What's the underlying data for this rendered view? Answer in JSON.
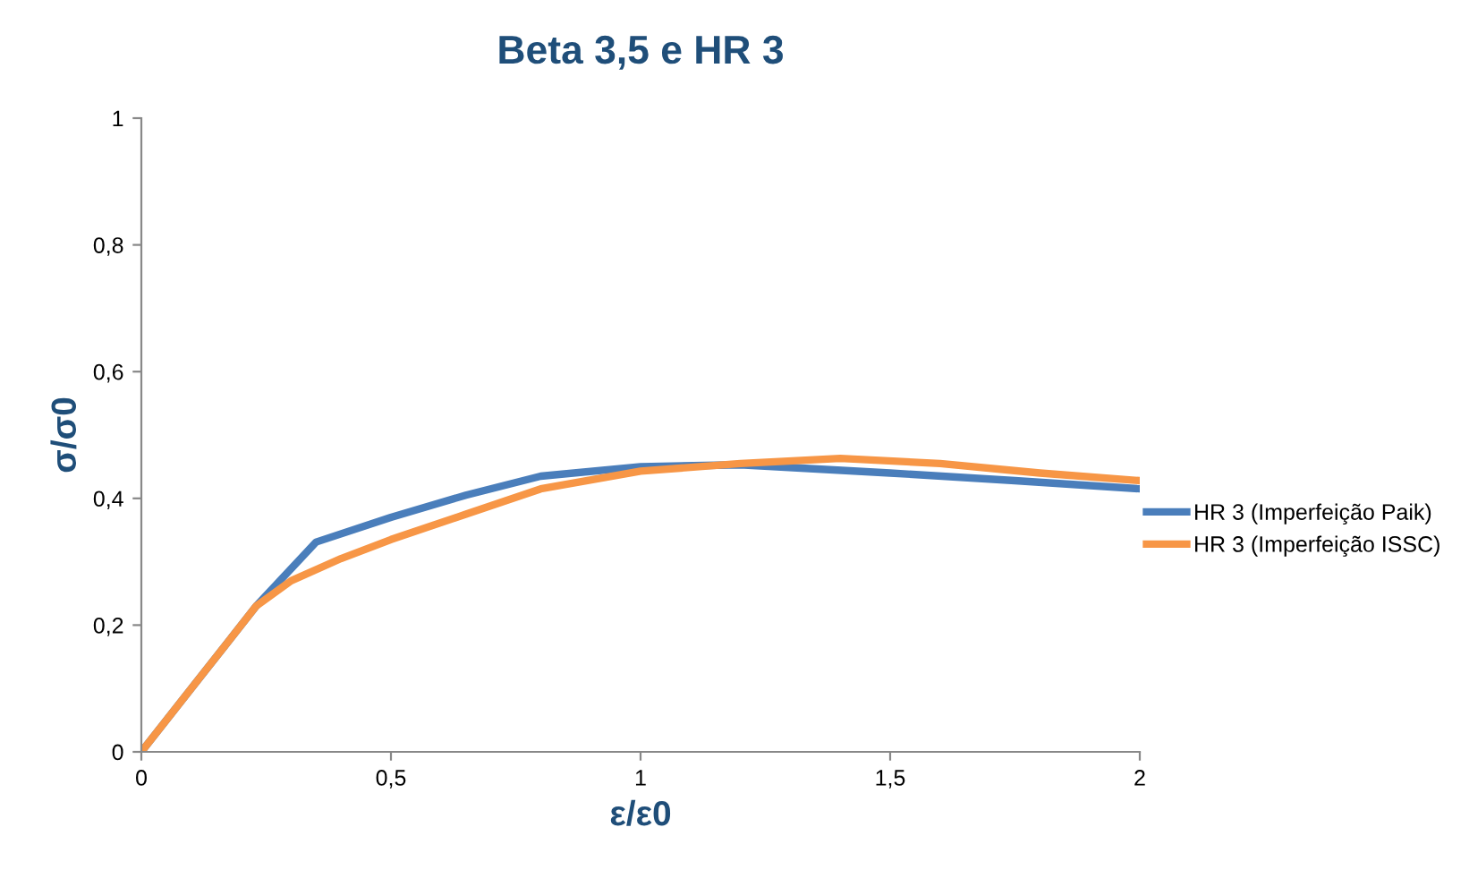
{
  "chart_data": {
    "type": "line",
    "title": "Beta 3,5 e HR 3",
    "xlabel": "ε/ε0",
    "ylabel": "σ/σ0",
    "xlim": [
      0,
      2
    ],
    "xticks": [
      0,
      {
        "value": 0.5,
        "label": "0,5"
      },
      1,
      {
        "value": 1.5,
        "label": "1,5"
      },
      2
    ],
    "ylim": [
      0,
      1
    ],
    "yticks": [
      0,
      {
        "value": 0.2,
        "label": "0,2"
      },
      {
        "value": 0.4,
        "label": "0,4"
      },
      {
        "value": 0.6,
        "label": "0,6"
      },
      {
        "value": 0.8,
        "label": "0,8"
      },
      1
    ],
    "grid": false,
    "legend": "right",
    "marker": "none",
    "line_style": "solid",
    "series": [
      {
        "name": "HR 3 (Imperfeição Paik)",
        "color": "#4a7ebb",
        "x": [
          0,
          0.23,
          0.35,
          0.5,
          0.65,
          0.8,
          1.0,
          1.2,
          1.5,
          1.75,
          2
        ],
        "values": [
          0,
          0.23,
          0.331,
          0.37,
          0.405,
          0.435,
          0.45,
          0.453,
          0.44,
          0.428,
          0.415
        ]
      },
      {
        "name": "HR 3 (Imperfeição ISSC)",
        "color": "#f79646",
        "x": [
          0,
          0.12,
          0.23,
          0.3,
          0.4,
          0.5,
          0.65,
          0.8,
          1.0,
          1.2,
          1.4,
          1.6,
          1.8,
          2
        ],
        "values": [
          0,
          0.12,
          0.23,
          0.27,
          0.305,
          0.335,
          0.375,
          0.415,
          0.443,
          0.455,
          0.463,
          0.455,
          0.44,
          0.428
        ]
      }
    ]
  }
}
